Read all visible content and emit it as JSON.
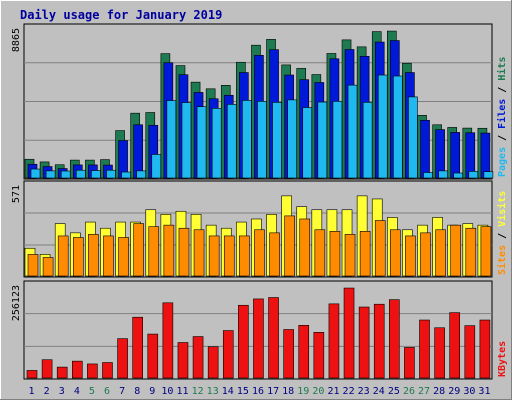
{
  "chart_data": {
    "type": "bar",
    "title": "Daily usage for January 2019",
    "colors": {
      "background": "#c0c0c0",
      "panel": "#c0c0c0",
      "title": "#0000a0",
      "hits": "#1e7a50",
      "files": "#0018d8",
      "pages": "#20b8f0",
      "visits": "#ffff33",
      "sites": "#ff8c00",
      "kbytes": "#ee1111",
      "weekend_day": "#1e7a50",
      "weekday": "#000080"
    },
    "days": [
      "1",
      "2",
      "3",
      "4",
      "5",
      "6",
      "7",
      "8",
      "9",
      "10",
      "11",
      "12",
      "13",
      "14",
      "15",
      "16",
      "17",
      "18",
      "19",
      "20",
      "21",
      "22",
      "23",
      "24",
      "25",
      "26",
      "27",
      "28",
      "29",
      "30",
      "31"
    ],
    "weekend_days": [
      "5",
      "6",
      "12",
      "13",
      "19",
      "20",
      "26",
      "27"
    ],
    "panels": [
      {
        "id": "hits-files-pages",
        "ymax_label": "8865",
        "ymax": 8865,
        "legend": [
          {
            "label": "Pages",
            "color": "#20b8f0"
          },
          {
            "label": "Files",
            "color": "#0018d8"
          },
          {
            "label": "Hits",
            "color": "#1e7a50"
          }
        ],
        "series": [
          {
            "name": "Hits",
            "color": "#1e7a50",
            "values": [
              1130,
              970,
              800,
              1080,
              1080,
              1110,
              2860,
              3910,
              3950,
              7500,
              6780,
              5780,
              5380,
              5590,
              6980,
              8010,
              8360,
              6820,
              6610,
              6240,
              7510,
              8330,
              7910,
              8830,
              8860,
              6920,
              3780,
              3210,
              3050,
              3010,
              3000
            ]
          },
          {
            "name": "Files",
            "color": "#0018d8",
            "values": [
              830,
              690,
              570,
              790,
              790,
              780,
              2260,
              3210,
              3180,
              6950,
              6230,
              5160,
              4780,
              4990,
              6360,
              7400,
              7740,
              6210,
              5930,
              5760,
              7190,
              7750,
              7340,
              8200,
              8290,
              6360,
              3480,
              2920,
              2750,
              2730,
              2710
            ]
          },
          {
            "name": "Pages",
            "color": "#20b8f0",
            "values": [
              540,
              430,
              420,
              470,
              450,
              470,
              360,
              430,
              1420,
              4670,
              4550,
              4300,
              4200,
              4440,
              4680,
              4620,
              4560,
              4710,
              4250,
              4580,
              4620,
              5600,
              4560,
              6210,
              6150,
              4890,
              330,
              430,
              300,
              400,
              380
            ]
          }
        ]
      },
      {
        "id": "visits-sites",
        "ymax_label": "571",
        "ymax": 571,
        "legend": [
          {
            "label": "Sites",
            "color": "#ff8c00"
          },
          {
            "label": "Visits",
            "color": "#ffff33"
          }
        ],
        "series": [
          {
            "name": "Visits",
            "color": "#ffff33",
            "values": [
              180,
              140,
              340,
              280,
              350,
              310,
              350,
              350,
              430,
              400,
              420,
              400,
              330,
              310,
              350,
              370,
              400,
              520,
              450,
              430,
              430,
              430,
              520,
              500,
              380,
              300,
              330,
              380,
              330,
              340,
              330
            ]
          },
          {
            "name": "Sites",
            "color": "#ff8c00",
            "values": [
              140,
              120,
              260,
              250,
              270,
              260,
              250,
              340,
              320,
              330,
              310,
              300,
              260,
              260,
              260,
              300,
              280,
              390,
              370,
              300,
              290,
              270,
              290,
              360,
              300,
              260,
              280,
              300,
              330,
              310,
              320
            ]
          }
        ]
      },
      {
        "id": "kbytes",
        "ymax_label": "256123",
        "ymax": 256123,
        "legend": [
          {
            "label": "KBytes",
            "color": "#ee1111"
          }
        ],
        "series": [
          {
            "name": "KBytes",
            "color": "#ee1111",
            "values": [
              21500,
              52000,
              31000,
              48000,
              40000,
              44000,
              112000,
              173000,
              125000,
              214000,
              101000,
              118000,
              89000,
              135000,
              207000,
              225000,
              229000,
              138000,
              150000,
              130000,
              211000,
              256000,
              202000,
              210000,
              223000,
              87000,
              165000,
              143000,
              186000,
              149000,
              165000
            ]
          }
        ]
      }
    ]
  }
}
